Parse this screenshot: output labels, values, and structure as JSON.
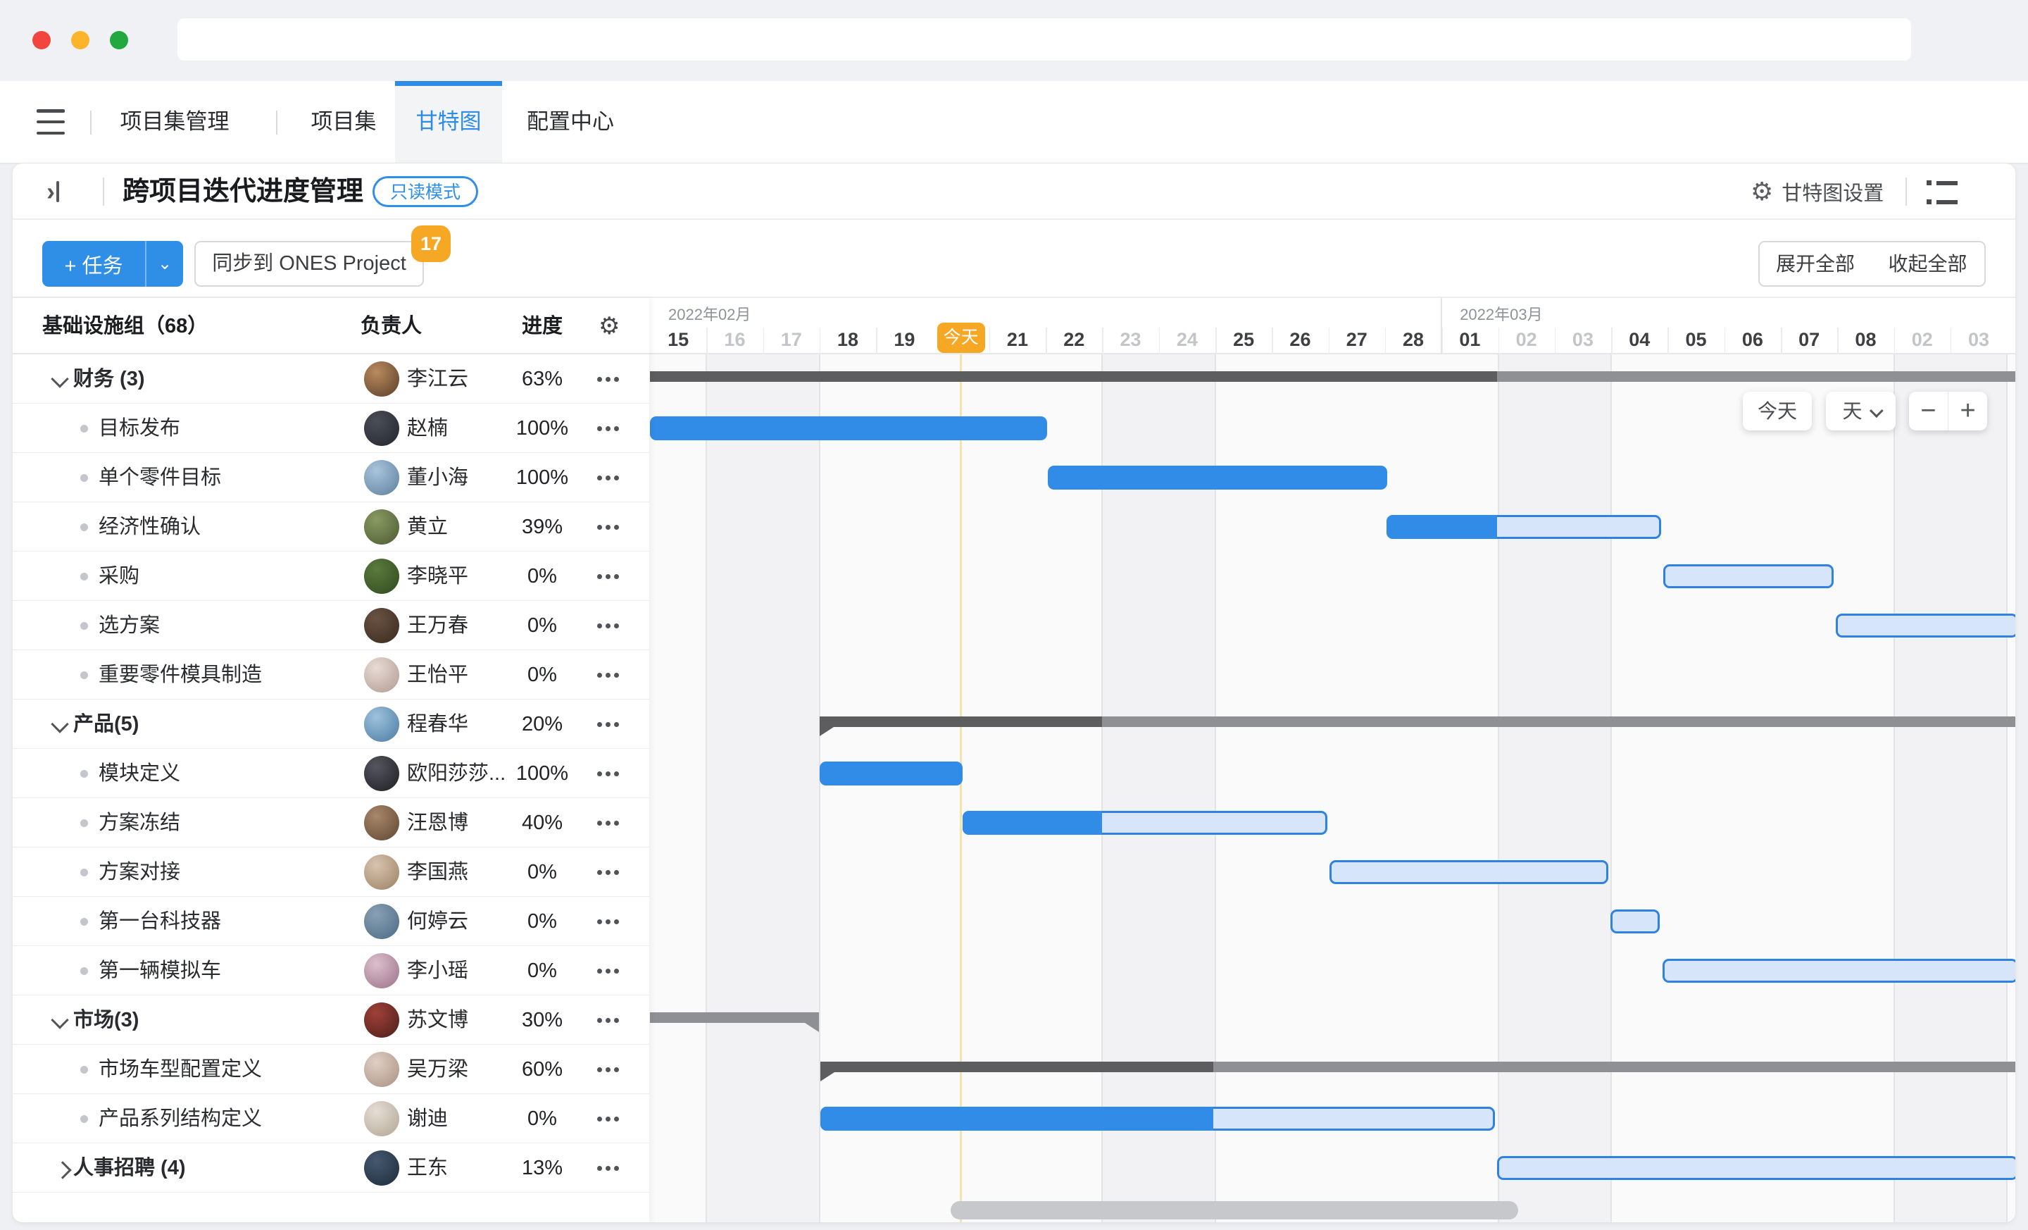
{
  "window": {
    "traffic_lights": [
      "#f1453d",
      "#fcb42b",
      "#23a73f"
    ],
    "url_value": ""
  },
  "nav": {
    "items": [
      {
        "label": "项目集管理"
      },
      {
        "label": "项目集"
      },
      {
        "label": "甘特图",
        "active": true
      },
      {
        "label": "配置中心"
      }
    ],
    "active_color": "#2e8ce6",
    "right_icons": [
      "plus-icon",
      "help-icon",
      "gear-icon",
      "bell-icon",
      "avatar"
    ]
  },
  "header": {
    "title": "跨项目迭代进度管理",
    "mode_badge": "只读模式",
    "settings_label": "甘特图设置"
  },
  "toolbar": {
    "add_task_label": "+ 任务",
    "sync_label": "同步到 ONES Project",
    "sync_badge": "17",
    "expand_all_label": "展开全部",
    "collapse_all_label": "收起全部"
  },
  "table": {
    "header": {
      "name": "基础设施组（68）",
      "owner": "负责人",
      "progress": "进度"
    },
    "rows": [
      {
        "type": "group",
        "collapsed": false,
        "name": "财务 (3)",
        "owner": "李江云",
        "progress": "63%",
        "avatar": [
          "#b98b5e",
          "#5a3d28"
        ]
      },
      {
        "type": "task",
        "name": "目标发布",
        "owner": "赵楠",
        "progress": "100%",
        "avatar": [
          "#4a4e58",
          "#23262c"
        ]
      },
      {
        "type": "task",
        "name": "单个零件目标",
        "owner": "董小海",
        "progress": "100%",
        "avatar": [
          "#aac4dc",
          "#5b7f9e"
        ]
      },
      {
        "type": "task",
        "name": "经济性确认",
        "owner": "黄立",
        "progress": "39%",
        "avatar": [
          "#8a9a62",
          "#4a5a32"
        ]
      },
      {
        "type": "task",
        "name": "采购",
        "owner": "李晓平",
        "progress": "0%",
        "avatar": [
          "#5a7a3d",
          "#2f4a1e"
        ]
      },
      {
        "type": "task",
        "name": "选方案",
        "owner": "王万春",
        "progress": "0%",
        "avatar": [
          "#6a5242",
          "#3a2a1e"
        ]
      },
      {
        "type": "task",
        "name": "重要零件模具制造",
        "owner": "王怡平",
        "progress": "0%",
        "avatar": [
          "#e8dcd6",
          "#b09a90"
        ]
      },
      {
        "type": "group",
        "collapsed": false,
        "name": "产品(5)",
        "owner": "程春华",
        "progress": "20%",
        "avatar": [
          "#9ec2de",
          "#4a7aa0"
        ]
      },
      {
        "type": "task",
        "name": "模块定义",
        "owner": "欧阳莎莎...",
        "progress": "100%",
        "avatar": [
          "#55565e",
          "#1e1f24"
        ]
      },
      {
        "type": "task",
        "name": "方案冻结",
        "owner": "汪恩博",
        "progress": "40%",
        "avatar": [
          "#a8876a",
          "#5f4632"
        ]
      },
      {
        "type": "task",
        "name": "方案对接",
        "owner": "李国燕",
        "progress": "0%",
        "avatar": [
          "#d8c4b0",
          "#9a8060"
        ]
      },
      {
        "type": "task",
        "name": "第一台科技器",
        "owner": "何婷云",
        "progress": "0%",
        "avatar": [
          "#8aa0b4",
          "#4a6a84"
        ]
      },
      {
        "type": "task",
        "name": "第一辆模拟车",
        "owner": "李小瑶",
        "progress": "0%",
        "avatar": [
          "#dcc0cc",
          "#9a7088"
        ]
      },
      {
        "type": "group",
        "collapsed": false,
        "name": "市场(3)",
        "owner": "苏文博",
        "progress": "30%",
        "avatar": [
          "#a04038",
          "#4a1e1a"
        ]
      },
      {
        "type": "task",
        "name": "市场车型配置定义",
        "owner": "吴万梁",
        "progress": "60%",
        "avatar": [
          "#e0cfc6",
          "#a89080"
        ]
      },
      {
        "type": "task",
        "name": "产品系列结构定义",
        "owner": "谢迪",
        "progress": "0%",
        "avatar": [
          "#e6ded6",
          "#b0a492"
        ]
      },
      {
        "type": "group",
        "collapsed": true,
        "name": "人事招聘 (4)",
        "owner": "王东",
        "progress": "13%",
        "avatar": [
          "#44586e",
          "#1e2c3c"
        ]
      }
    ]
  },
  "gantt": {
    "day_width": 80.3,
    "months": [
      {
        "label": "2022年02月",
        "startIndex": 0
      },
      {
        "label": "2022年03月",
        "startIndex": 14
      }
    ],
    "days": [
      {
        "label": "15"
      },
      {
        "label": "16",
        "dim": true
      },
      {
        "label": "17",
        "dim": true
      },
      {
        "label": "18"
      },
      {
        "label": "19"
      },
      {
        "label": "20"
      },
      {
        "label": "21"
      },
      {
        "label": "22"
      },
      {
        "label": "23",
        "dim": true
      },
      {
        "label": "24",
        "dim": true
      },
      {
        "label": "25"
      },
      {
        "label": "26"
      },
      {
        "label": "27"
      },
      {
        "label": "28"
      },
      {
        "label": "01"
      },
      {
        "label": "02",
        "dim": true
      },
      {
        "label": "03",
        "dim": true
      },
      {
        "label": "04"
      },
      {
        "label": "05"
      },
      {
        "label": "06"
      },
      {
        "label": "07"
      },
      {
        "label": "08"
      },
      {
        "label": "02",
        "dim": true
      },
      {
        "label": "03",
        "dim": true
      }
    ],
    "today_index": 5,
    "today_label": "今天",
    "controls": {
      "today": "今天",
      "scale": "天",
      "zoom_out": "−",
      "zoom_in": "+"
    },
    "bars": [
      {
        "row": 0,
        "kind": "summary",
        "s": 0,
        "e": 24.2,
        "prog": 14.98,
        "notchL": false,
        "notchR": false,
        "task": "财务 (3)"
      },
      {
        "row": 1,
        "kind": "task",
        "s": 0,
        "e": 7.02,
        "prog": 7.02,
        "task": "目标发布"
      },
      {
        "row": 2,
        "kind": "task",
        "s": 7.04,
        "e": 13.04,
        "prog": 13.04,
        "task": "单个零件目标"
      },
      {
        "row": 3,
        "kind": "task",
        "s": 13.03,
        "e": 17.88,
        "prog": 14.98,
        "task": "经济性确认"
      },
      {
        "row": 4,
        "kind": "task",
        "s": 17.92,
        "e": 20.93,
        "prog": 17.92,
        "task": "采购"
      },
      {
        "row": 5,
        "kind": "task",
        "s": 20.97,
        "e": 24.2,
        "prog": 20.97,
        "task": "选方案"
      },
      {
        "row": 7,
        "kind": "summary",
        "s": 3.0,
        "e": 24.2,
        "prog": 8.0,
        "notchL": true,
        "notchR": false,
        "task": "产品(5)"
      },
      {
        "row": 8,
        "kind": "task",
        "s": 3.0,
        "e": 5.53,
        "prog": 5.53,
        "task": "模块定义"
      },
      {
        "row": 9,
        "kind": "task",
        "s": 5.53,
        "e": 11.98,
        "prog": 8.0,
        "task": "方案冻结"
      },
      {
        "row": 10,
        "kind": "task",
        "s": 12.02,
        "e": 16.95,
        "prog": 12.02,
        "task": "方案对接"
      },
      {
        "row": 11,
        "kind": "task",
        "s": 16.99,
        "e": 17.86,
        "prog": 16.99,
        "task": "第一台科技器"
      },
      {
        "row": 12,
        "kind": "task",
        "s": 17.91,
        "e": 24.2,
        "prog": 17.91,
        "task": "第一辆模拟车"
      },
      {
        "row": 13,
        "kind": "summary",
        "s": 0,
        "e": 2.99,
        "prog": 0,
        "notchL": false,
        "notchR": true,
        "task": "市场(3)"
      },
      {
        "row": 14,
        "kind": "summary",
        "s": 3.01,
        "e": 24.2,
        "prog": 9.96,
        "notchL": true,
        "notchR": false,
        "task": "市场车型配置定义"
      },
      {
        "row": 15,
        "kind": "task",
        "s": 3.01,
        "e": 14.94,
        "prog": 9.96,
        "task": "产品系列结构定义"
      },
      {
        "row": 16,
        "kind": "task",
        "s": 14.98,
        "e": 24.2,
        "prog": 14.98,
        "task": "人事招聘 (4)"
      }
    ],
    "colors": {
      "bar_solid": "#318ce7",
      "bar_light_fill": "#d7e5fb",
      "bar_light_border": "#2f82dd",
      "bar_dark": "#5d5d60",
      "bar_medium": "#8f9094",
      "today_badge": "#f6a723",
      "today_line": "#f5e2b2",
      "weekend_shade": "#f2f2f4",
      "grid_line": "#e4e4e7"
    }
  }
}
